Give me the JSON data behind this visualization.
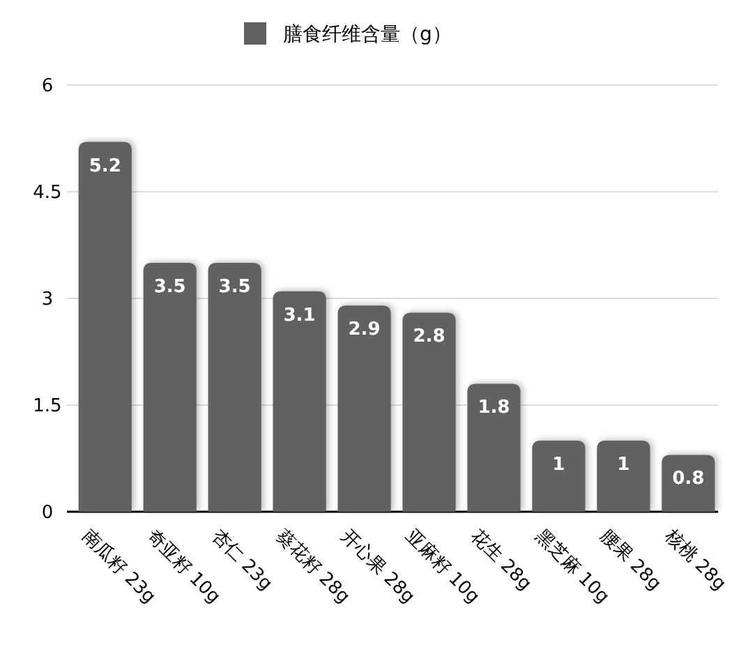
{
  "chart_data": {
    "type": "bar",
    "categories": [
      "南瓜籽 23g",
      "奇亚籽 10g",
      "杏仁 23g",
      "葵花籽 28g",
      "开心果 28g",
      "亚麻籽 10g",
      "花生 28g",
      "黑芝麻 10g",
      "腰果 28g",
      "核桃 28g"
    ],
    "series": [
      {
        "name": "膳食纤维含量（g）",
        "color": "#5f625f",
        "values": [
          5.2,
          3.5,
          3.5,
          3.1,
          2.9,
          2.8,
          1.8,
          1,
          1,
          0.8
        ]
      }
    ],
    "ylim": [
      0,
      6
    ],
    "yticks": [
      0,
      1.5,
      3,
      4.5,
      6
    ],
    "grid": "y",
    "legend": "top",
    "data_labels": true
  }
}
